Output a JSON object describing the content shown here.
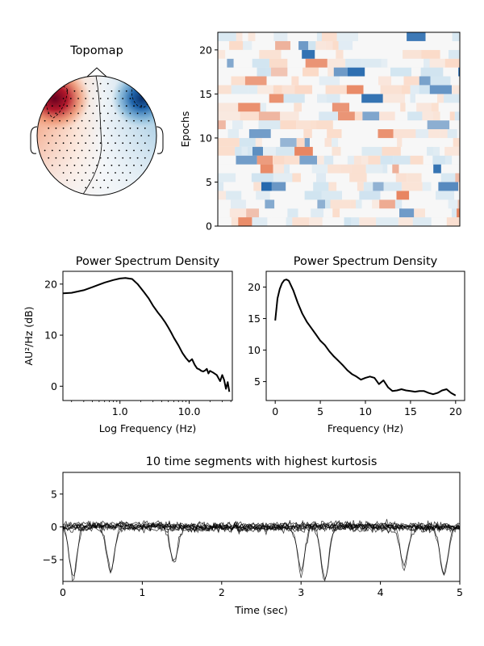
{
  "chart_data": [
    {
      "type": "heatmap",
      "panel": "topomap",
      "title": "Topomap",
      "colormap": "RdBu_r",
      "description": "Scalp topography: strong positive (red) region at left-frontal, negative (blue) region at right-frontal, near-zero at posterior"
    },
    {
      "type": "heatmap",
      "panel": "epochs-image",
      "title": "",
      "ylabel": "Epochs",
      "yticks": [
        0,
        5,
        10,
        15,
        20
      ],
      "ylim": [
        0,
        22
      ],
      "colormap": "RdBu_r",
      "colors": {
        "pos_strong": "#e8845f",
        "pos_weak": "#fbd9c6",
        "neg_strong": "#2166ac",
        "neg_weak": "#cfe3f0",
        "zero": "#f7f7f7"
      }
    },
    {
      "type": "line",
      "panel": "psd-log",
      "title": "Power Spectrum Density",
      "xlabel": "Log Frequency (Hz)",
      "ylabel": "AU²/Hz (dB)",
      "xscale": "log",
      "xlim": [
        0.15,
        42
      ],
      "ylim": [
        -2.8,
        22.5
      ],
      "xticks": [
        "1.0",
        "10.0"
      ],
      "yticks": [
        "0",
        "10",
        "20"
      ],
      "x": [
        0.15,
        0.2,
        0.3,
        0.4,
        0.5,
        0.6,
        0.8,
        1.0,
        1.2,
        1.5,
        1.8,
        2.2,
        2.6,
        3.0,
        3.5,
        4.0,
        4.5,
        5.0,
        5.5,
        6.0,
        7.0,
        8.0,
        9.0,
        10.0,
        11.0,
        12.0,
        13.0,
        14.0,
        15.0,
        16.0,
        17.0,
        18.0,
        19.0,
        20.0,
        22.0,
        25.0,
        28.0,
        30.0,
        32.0,
        34.0,
        36.0,
        38.0
      ],
      "series": [
        {
          "values": [
            18.2,
            18.3,
            18.8,
            19.4,
            19.9,
            20.3,
            20.8,
            21.1,
            21.2,
            21.0,
            20.0,
            18.5,
            17.2,
            15.8,
            14.5,
            13.5,
            12.5,
            11.5,
            10.5,
            9.5,
            8.0,
            6.5,
            5.5,
            4.8,
            5.3,
            4.2,
            3.5,
            3.3,
            3.0,
            2.9,
            3.1,
            3.4,
            2.5,
            3.0,
            2.7,
            2.2,
            1.0,
            2.2,
            1.2,
            -0.5,
            0.8,
            -1.1
          ]
        }
      ]
    },
    {
      "type": "line",
      "panel": "psd-linear",
      "title": "Power Spectrum Density",
      "xlabel": "Frequency (Hz)",
      "ylabel": "",
      "xlim": [
        -1.0,
        21.0
      ],
      "ylim": [
        2.0,
        22.5
      ],
      "xticks": [
        "0",
        "5",
        "10",
        "15",
        "20"
      ],
      "yticks": [
        "5",
        "10",
        "15",
        "20"
      ],
      "x": [
        0.0,
        0.25,
        0.5,
        0.75,
        1.0,
        1.25,
        1.5,
        2.0,
        2.5,
        3.0,
        3.5,
        4.0,
        4.5,
        5.0,
        5.5,
        6.0,
        6.5,
        7.0,
        7.5,
        8.0,
        8.5,
        9.0,
        9.5,
        10.0,
        10.5,
        11.0,
        11.5,
        12.0,
        12.5,
        13.0,
        13.5,
        14.0,
        14.5,
        15.0,
        15.5,
        16.0,
        16.5,
        17.0,
        17.5,
        18.0,
        18.5,
        19.0,
        19.5,
        20.0
      ],
      "series": [
        {
          "values": [
            14.7,
            18.2,
            19.7,
            20.6,
            21.1,
            21.2,
            21.0,
            19.5,
            17.5,
            15.8,
            14.5,
            13.5,
            12.5,
            11.5,
            10.8,
            9.8,
            9.0,
            8.3,
            7.6,
            6.8,
            6.2,
            5.8,
            5.3,
            5.6,
            5.8,
            5.6,
            4.6,
            5.2,
            4.1,
            3.5,
            3.6,
            3.8,
            3.6,
            3.5,
            3.4,
            3.5,
            3.5,
            3.2,
            3.0,
            3.2,
            3.6,
            3.8,
            3.2,
            2.8
          ]
        }
      ]
    },
    {
      "type": "line",
      "panel": "kurtosis-segments",
      "title": "10 time segments with highest kurtosis",
      "xlabel": "Time (sec)",
      "ylabel": "",
      "xlim": [
        0,
        5
      ],
      "ylim": [
        -8.3,
        8.3
      ],
      "xticks": [
        "0",
        "1",
        "2",
        "3",
        "4",
        "5"
      ],
      "yticks": [
        "−5",
        "0",
        "5"
      ],
      "series_count": 10,
      "spikes": [
        {
          "t": 0.13,
          "amp": -7.5
        },
        {
          "t": 0.6,
          "amp": -6.5
        },
        {
          "t": 1.4,
          "amp": -5.5
        },
        {
          "t": 3.0,
          "amp": -7.0
        },
        {
          "t": 3.3,
          "amp": -8.0
        },
        {
          "t": 4.3,
          "amp": -6.0
        },
        {
          "t": 4.8,
          "amp": -7.0
        }
      ]
    }
  ]
}
